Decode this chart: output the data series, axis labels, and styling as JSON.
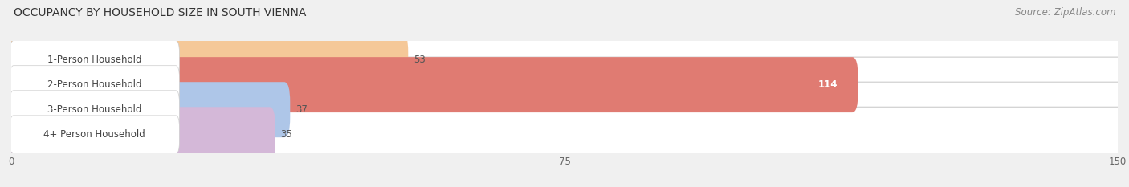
{
  "title": "OCCUPANCY BY HOUSEHOLD SIZE IN SOUTH VIENNA",
  "source": "Source: ZipAtlas.com",
  "categories": [
    "1-Person Household",
    "2-Person Household",
    "3-Person Household",
    "4+ Person Household"
  ],
  "values": [
    53,
    114,
    37,
    35
  ],
  "bar_colors": [
    "#f5c898",
    "#e07b72",
    "#aec6e8",
    "#d4b8d8"
  ],
  "xlim": [
    0,
    150
  ],
  "xticks": [
    0,
    75,
    150
  ],
  "background_color": "#f0f0f0",
  "bar_bg_color": "#ffffff",
  "bar_border_color": "#dddddd",
  "title_fontsize": 10,
  "source_fontsize": 8.5,
  "label_fontsize": 8.5,
  "value_fontsize": 8.5,
  "tick_fontsize": 8.5
}
